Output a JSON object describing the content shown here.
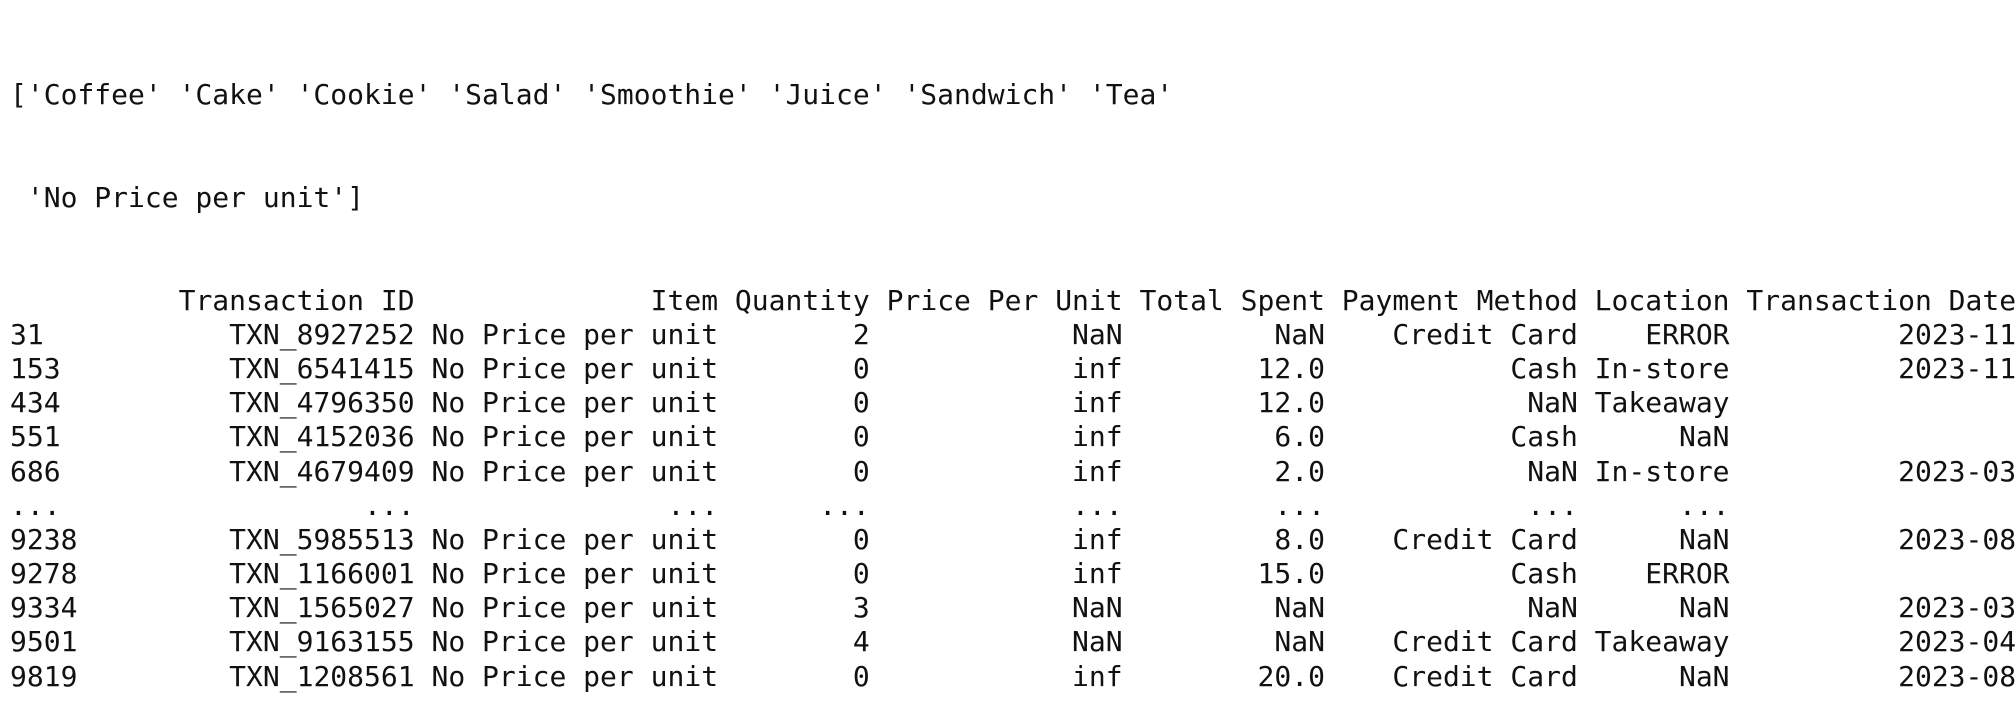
{
  "output": {
    "unique_items_lines": [
      "['Coffee' 'Cake' 'Cookie' 'Salad' 'Smoothie' 'Juice' 'Sandwich' 'Tea'",
      " 'No Price per unit']"
    ],
    "table": {
      "columns": [
        "Transaction ID",
        "Item",
        "Quantity",
        "Price Per Unit",
        "Total Spent",
        "Payment Method",
        "Location",
        "Transaction Date"
      ],
      "rows": [
        {
          "index": "31",
          "transaction_id": "TXN_8927252",
          "item": "No Price per unit",
          "quantity": "2",
          "price_per_unit": "NaN",
          "total_spent": "NaN",
          "payment_method": "Credit Card",
          "location": "ERROR",
          "transaction_date": "2023-11"
        },
        {
          "index": "153",
          "transaction_id": "TXN_6541415",
          "item": "No Price per unit",
          "quantity": "0",
          "price_per_unit": "inf",
          "total_spent": "12.0",
          "payment_method": "Cash",
          "location": "In-store",
          "transaction_date": "2023-11"
        },
        {
          "index": "434",
          "transaction_id": "TXN_4796350",
          "item": "No Price per unit",
          "quantity": "0",
          "price_per_unit": "inf",
          "total_spent": "12.0",
          "payment_method": "NaN",
          "location": "Takeaway",
          "transaction_date": ""
        },
        {
          "index": "551",
          "transaction_id": "TXN_4152036",
          "item": "No Price per unit",
          "quantity": "0",
          "price_per_unit": "inf",
          "total_spent": "6.0",
          "payment_method": "Cash",
          "location": "NaN",
          "transaction_date": ""
        },
        {
          "index": "686",
          "transaction_id": "TXN_4679409",
          "item": "No Price per unit",
          "quantity": "0",
          "price_per_unit": "inf",
          "total_spent": "2.0",
          "payment_method": "NaN",
          "location": "In-store",
          "transaction_date": "2023-03"
        },
        {
          "index": "...",
          "transaction_id": "...",
          "item": "...",
          "quantity": "...",
          "price_per_unit": "...",
          "total_spent": "...",
          "payment_method": "...",
          "location": "...",
          "transaction_date": ""
        },
        {
          "index": "9238",
          "transaction_id": "TXN_5985513",
          "item": "No Price per unit",
          "quantity": "0",
          "price_per_unit": "inf",
          "total_spent": "8.0",
          "payment_method": "Credit Card",
          "location": "NaN",
          "transaction_date": "2023-08"
        },
        {
          "index": "9278",
          "transaction_id": "TXN_1166001",
          "item": "No Price per unit",
          "quantity": "0",
          "price_per_unit": "inf",
          "total_spent": "15.0",
          "payment_method": "Cash",
          "location": "ERROR",
          "transaction_date": ""
        },
        {
          "index": "9334",
          "transaction_id": "TXN_1565027",
          "item": "No Price per unit",
          "quantity": "3",
          "price_per_unit": "NaN",
          "total_spent": "NaN",
          "payment_method": "NaN",
          "location": "NaN",
          "transaction_date": "2023-03"
        },
        {
          "index": "9501",
          "transaction_id": "TXN_9163155",
          "item": "No Price per unit",
          "quantity": "4",
          "price_per_unit": "NaN",
          "total_spent": "NaN",
          "payment_method": "Credit Card",
          "location": "Takeaway",
          "transaction_date": "2023-04"
        },
        {
          "index": "9819",
          "transaction_id": "TXN_1208561",
          "item": "No Price per unit",
          "quantity": "0",
          "price_per_unit": "inf",
          "total_spent": "20.0",
          "payment_method": "Credit Card",
          "location": "NaN",
          "transaction_date": "2023-08"
        }
      ]
    }
  },
  "colors": {
    "background": "#ffffff",
    "text": "#111111"
  }
}
